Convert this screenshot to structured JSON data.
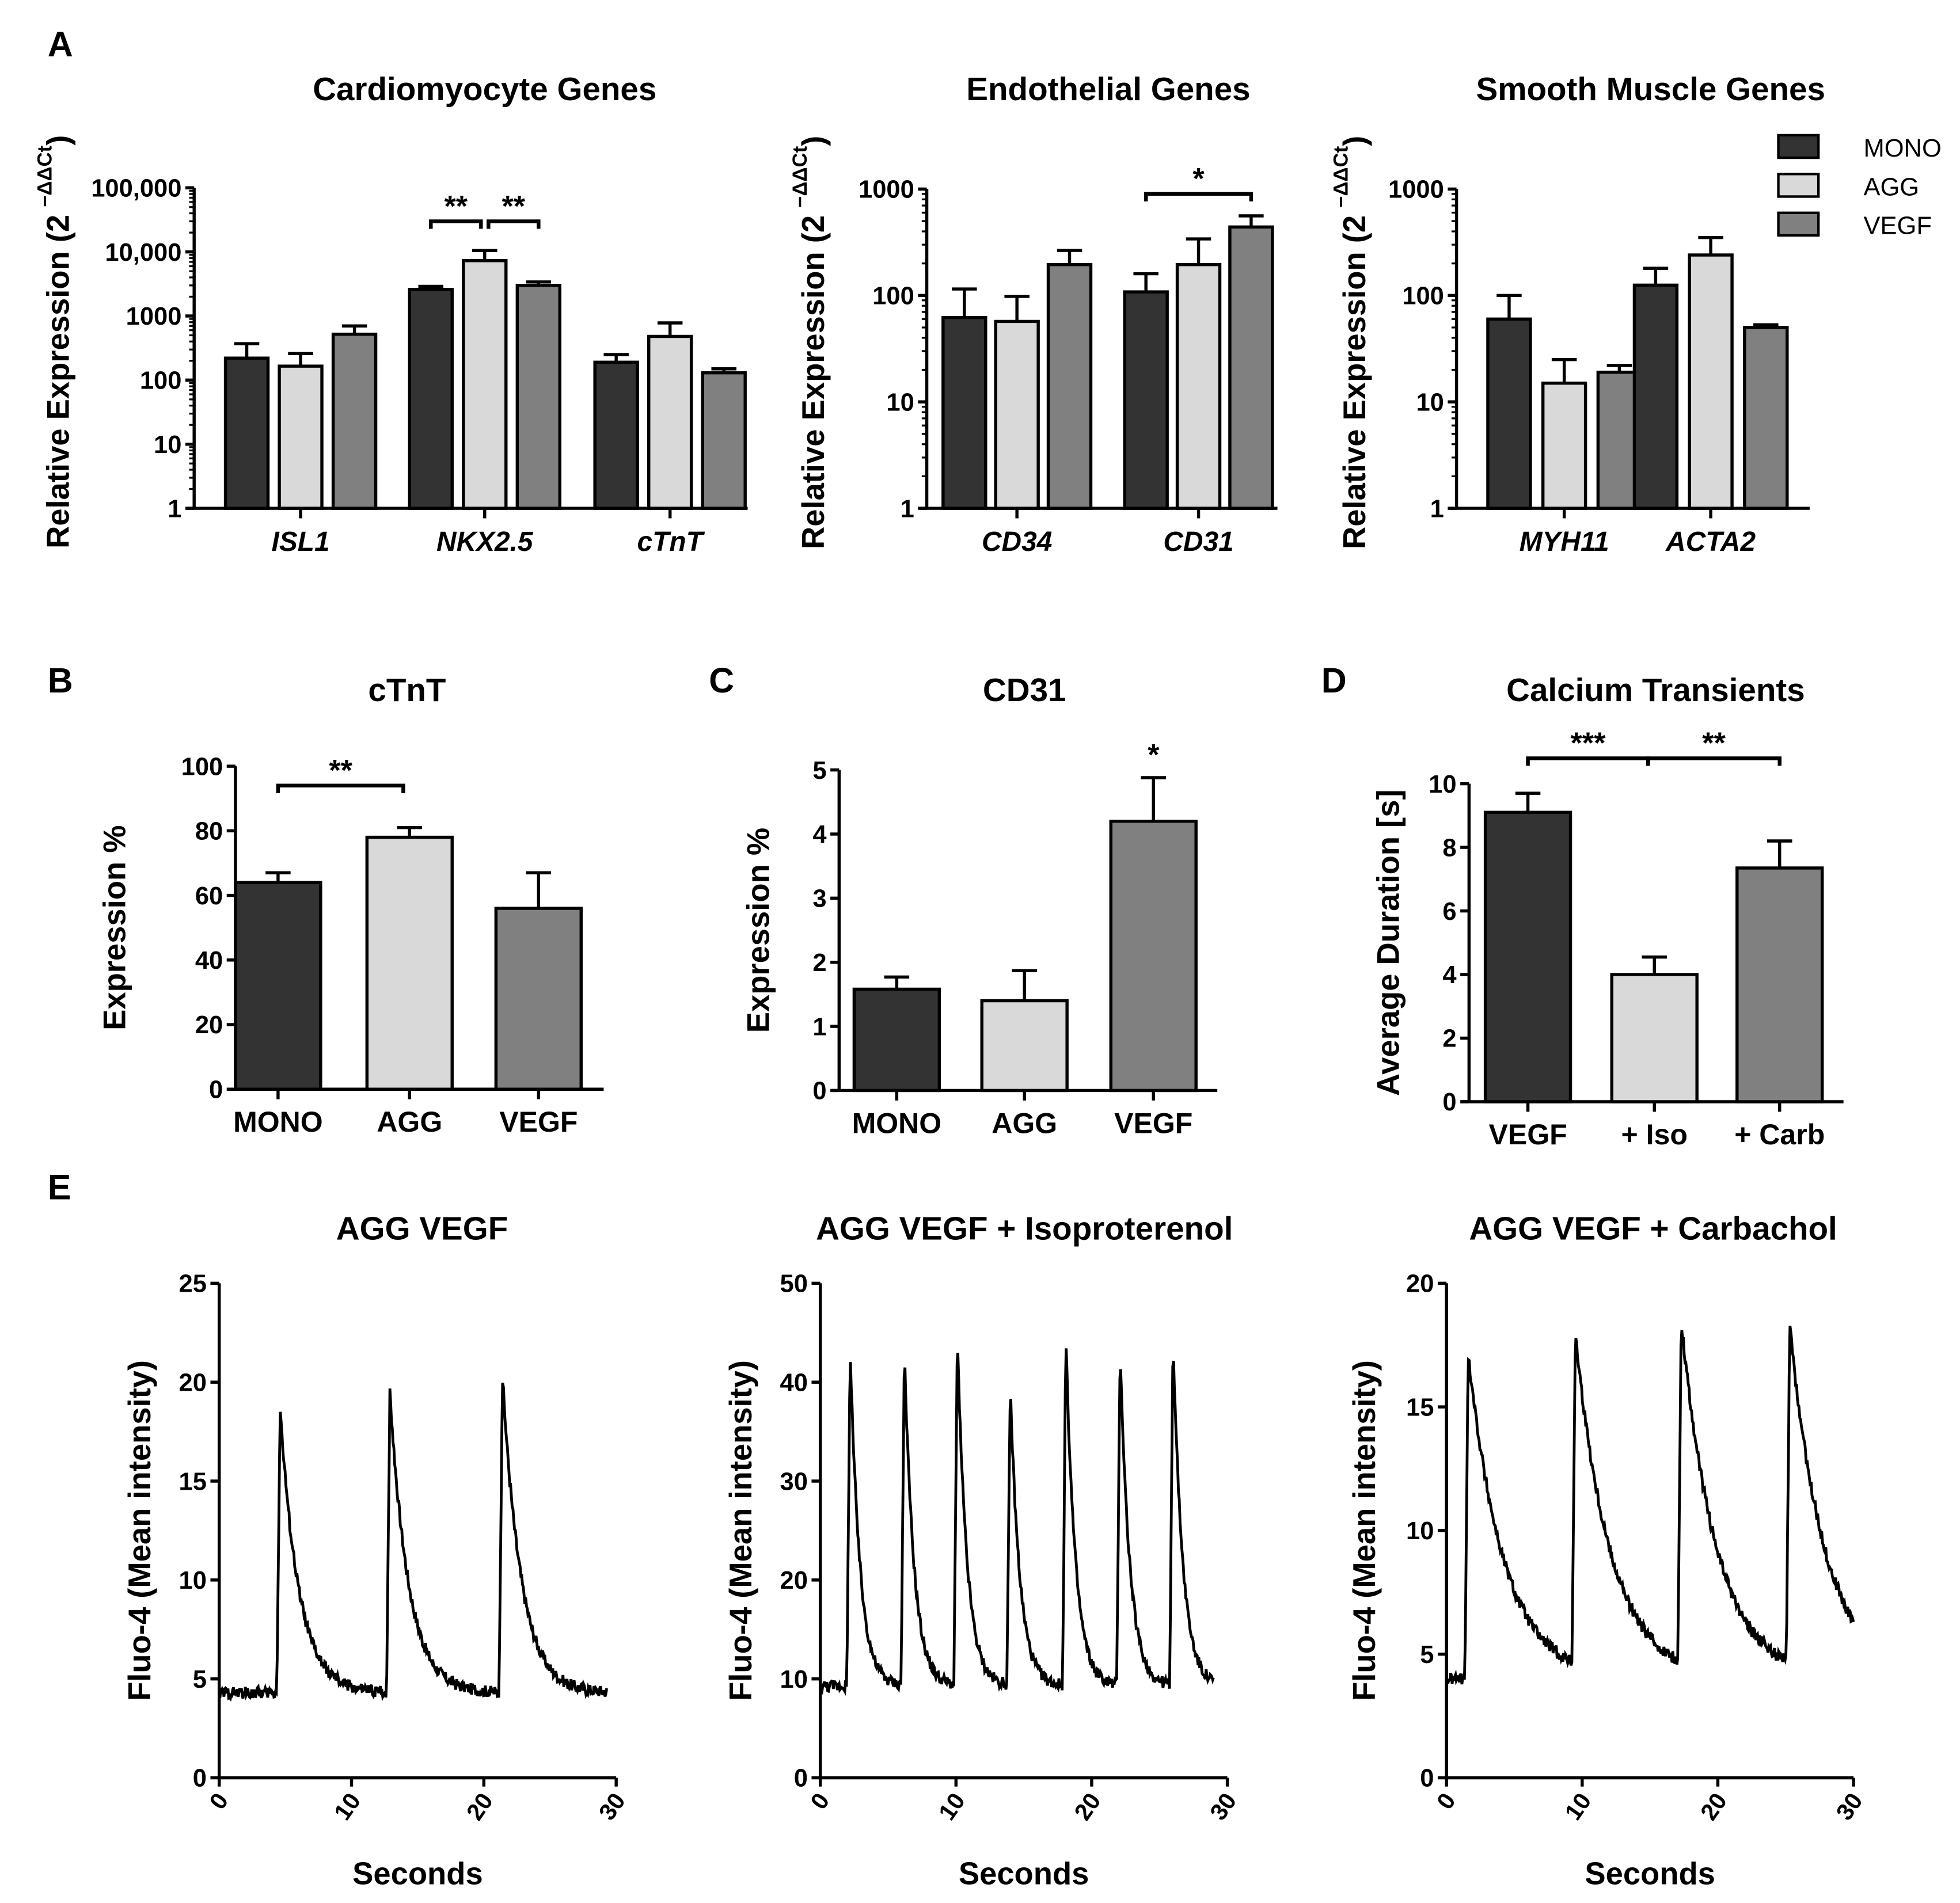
{
  "colors": {
    "MONO": "#333333",
    "AGG": "#d9d9d9",
    "VEGF": "#808080",
    "axis": "#000000"
  },
  "panel_letters": [
    "A",
    "B",
    "C",
    "D",
    "E"
  ],
  "chart_data": [
    {
      "id": "A1",
      "type": "bar",
      "title": "Cardiomyocyte Genes",
      "ylabel": "Relative Expression (2",
      "ylabel_sup": "−ΔΔCt",
      "ylabel_close": ")",
      "scale": "log",
      "ylim": [
        1,
        100000
      ],
      "yticks": [
        1,
        10,
        100,
        1000,
        10000,
        100000
      ],
      "ytick_labels": [
        "1",
        "10",
        "100",
        "1000",
        "10,000",
        "100,000"
      ],
      "categories": [
        "ISL1",
        "NKX2.5",
        "cTnT"
      ],
      "italic": true,
      "series": [
        {
          "name": "MONO",
          "values": [
            220,
            2600,
            190
          ],
          "err_top": [
            370,
            2900,
            250
          ]
        },
        {
          "name": "AGG",
          "values": [
            165,
            7300,
            480
          ],
          "err_top": [
            260,
            10500,
            780
          ]
        },
        {
          "name": "VEGF",
          "values": [
            520,
            3000,
            130
          ],
          "err_top": [
            700,
            3400,
            150
          ]
        }
      ],
      "significance": [
        {
          "category": 1,
          "from": 0,
          "to": 1,
          "label": "**",
          "at": 30000
        },
        {
          "category": 1,
          "from": 1,
          "to": 2,
          "label": "**",
          "at": 30000
        }
      ]
    },
    {
      "id": "A2",
      "type": "bar",
      "title": "Endothelial Genes",
      "ylabel": "Relative Expression (2",
      "ylabel_sup": "−ΔΔCt",
      "ylabel_close": ")",
      "scale": "log",
      "ylim": [
        1,
        1000
      ],
      "yticks": [
        1,
        10,
        100,
        1000
      ],
      "ytick_labels": [
        "1",
        "10",
        "100",
        "1000"
      ],
      "categories": [
        "CD34",
        "CD31"
      ],
      "italic": true,
      "series": [
        {
          "name": "MONO",
          "values": [
            62,
            108
          ],
          "err_top": [
            115,
            160
          ]
        },
        {
          "name": "AGG",
          "values": [
            57,
            195
          ],
          "err_top": [
            98,
            340
          ]
        },
        {
          "name": "VEGF",
          "values": [
            195,
            440
          ],
          "err_top": [
            265,
            560
          ]
        }
      ],
      "significance": [
        {
          "category": 1,
          "from": 0,
          "to": 2,
          "label": "*",
          "at": 900
        }
      ]
    },
    {
      "id": "A3",
      "type": "bar",
      "title": "Smooth Muscle Genes",
      "ylabel": "Relative Expression (2",
      "ylabel_sup": "−ΔΔCt",
      "ylabel_close": ")",
      "scale": "log",
      "ylim": [
        1,
        1000
      ],
      "yticks": [
        1,
        10,
        100,
        1000
      ],
      "ytick_labels": [
        "1",
        "10",
        "100",
        "1000"
      ],
      "categories": [
        "MYH11",
        "ACTA2"
      ],
      "italic": true,
      "series": [
        {
          "name": "MONO",
          "values": [
            60,
            125
          ],
          "err_top": [
            100,
            180
          ]
        },
        {
          "name": "AGG",
          "values": [
            15,
            240
          ],
          "err_top": [
            25,
            350
          ]
        },
        {
          "name": "VEGF",
          "values": [
            19,
            50
          ],
          "err_top": [
            22,
            53
          ]
        }
      ],
      "legend": {
        "placement": "top-right",
        "entries": [
          "MONO",
          "AGG",
          "VEGF"
        ]
      },
      "significance": []
    },
    {
      "id": "B",
      "type": "bar",
      "title": "cTnT",
      "ylabel": "Expression %",
      "scale": "linear",
      "ylim": [
        0,
        100
      ],
      "yticks": [
        0,
        20,
        40,
        60,
        80,
        100
      ],
      "ytick_labels": [
        "0",
        "20",
        "40",
        "60",
        "80",
        "100"
      ],
      "categories": [
        "MONO",
        "AGG",
        "VEGF"
      ],
      "color_keys": [
        "MONO",
        "AGG",
        "VEGF"
      ],
      "values": [
        64,
        78,
        56
      ],
      "err_top": [
        67,
        81,
        67
      ],
      "significance": [
        {
          "from": 0,
          "to": 1,
          "label": "**",
          "at": 94
        }
      ]
    },
    {
      "id": "C",
      "type": "bar",
      "title": "CD31",
      "ylabel": "Expression %",
      "scale": "linear",
      "ylim": [
        0,
        5
      ],
      "yticks": [
        0,
        1,
        2,
        3,
        4,
        5
      ],
      "ytick_labels": [
        "0",
        "1",
        "2",
        "3",
        "4",
        "5"
      ],
      "categories": [
        "MONO",
        "AGG",
        "VEGF"
      ],
      "color_keys": [
        "MONO",
        "AGG",
        "VEGF"
      ],
      "values": [
        1.58,
        1.4,
        4.2
      ],
      "err_top": [
        1.77,
        1.87,
        4.88
      ],
      "significance": [
        {
          "from": 2,
          "to": 2,
          "label": "*",
          "at": 5.0
        }
      ]
    },
    {
      "id": "D",
      "type": "bar",
      "title": "Calcium Transients",
      "ylabel": "Average Duration [s]",
      "scale": "linear",
      "ylim": [
        0,
        10
      ],
      "yticks": [
        0,
        2,
        4,
        6,
        8,
        10
      ],
      "ytick_labels": [
        "0",
        "2",
        "4",
        "6",
        "8",
        "10"
      ],
      "categories": [
        "VEGF",
        "+ Iso",
        "+ Carb"
      ],
      "color_keys": [
        "MONO",
        "AGG",
        "VEGF"
      ],
      "values": [
        9.1,
        4.0,
        7.35
      ],
      "err_top": [
        9.7,
        4.55,
        8.2
      ],
      "significance": [
        {
          "from": 0,
          "to": 1,
          "label": "***",
          "at": 10.8
        },
        {
          "from": 1,
          "to": 2,
          "label": "**",
          "at": 10.8
        }
      ]
    },
    {
      "id": "E1",
      "type": "line",
      "title": "AGG VEGF",
      "xlabel": "Seconds",
      "ylabel": "Fluo-4 (Mean intensity)",
      "xlim": [
        0,
        30
      ],
      "ylim": [
        0,
        25
      ],
      "xticks": [
        0,
        10,
        20,
        30
      ],
      "yticks": [
        0,
        5,
        10,
        15,
        20,
        25
      ],
      "baseline": 4.3,
      "duration": 29.3,
      "decay_tau": 1.4,
      "peaks": [
        {
          "t": 4.6,
          "value": 18.7
        },
        {
          "t": 12.9,
          "value": 19.5
        },
        {
          "t": 21.4,
          "value": 20.3
        }
      ]
    },
    {
      "id": "E2",
      "type": "line",
      "title": "AGG VEGF + Isoproterenol",
      "xlabel": "Seconds",
      "ylabel": "Fluo-4 (Mean intensity)",
      "xlim": [
        0,
        30
      ],
      "ylim": [
        0,
        50
      ],
      "xticks": [
        0,
        10,
        20,
        30
      ],
      "yticks": [
        0,
        10,
        20,
        30,
        40,
        50
      ],
      "baseline": 9.3,
      "duration": 29.0,
      "decay_tau": 0.7,
      "peaks": [
        {
          "t": 2.2,
          "value": 43.5
        },
        {
          "t": 6.2,
          "value": 43.0
        },
        {
          "t": 10.1,
          "value": 44.5
        },
        {
          "t": 14.0,
          "value": 39.5
        },
        {
          "t": 18.1,
          "value": 44.5
        },
        {
          "t": 22.1,
          "value": 43.5
        },
        {
          "t": 26.0,
          "value": 44.5
        }
      ]
    },
    {
      "id": "E3",
      "type": "line",
      "title": "AGG VEGF + Carbachol",
      "xlabel": "Seconds",
      "ylabel": "Fluo-4 (Mean intensity)",
      "xlim": [
        0,
        30
      ],
      "ylim": [
        0,
        20
      ],
      "xticks": [
        0,
        10,
        20,
        30
      ],
      "yticks": [
        0,
        5,
        10,
        15,
        20
      ],
      "baseline": 4.0,
      "duration": 30.0,
      "decay_tau": 2.6,
      "peaks": [
        {
          "t": 1.6,
          "value": 17.2
        },
        {
          "t": 9.5,
          "value": 17.3
        },
        {
          "t": 17.3,
          "value": 17.8
        },
        {
          "t": 25.3,
          "value": 17.6
        }
      ]
    }
  ]
}
